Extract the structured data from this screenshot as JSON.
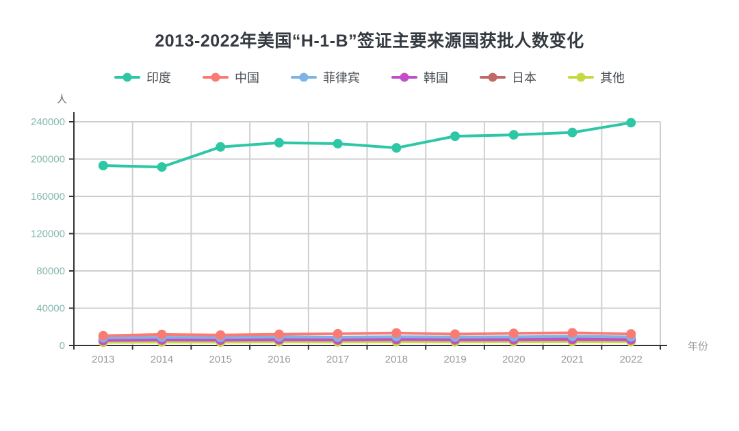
{
  "page": {
    "background": "#ffffff"
  },
  "chart_data": {
    "type": "line",
    "title": "2013-2022年美国“H-1-B”签证主要来源国获批人数变化",
    "xlabel": "年份",
    "ylabel": "人",
    "categories": [
      "2013",
      "2014",
      "2015",
      "2016",
      "2017",
      "2018",
      "2019",
      "2020",
      "2021",
      "2022"
    ],
    "series": [
      {
        "name": "印度",
        "color": "#2EC7A6",
        "values": [
          193000,
          191500,
          213000,
          217500,
          216500,
          212000,
          224500,
          226000,
          228500,
          239000
        ]
      },
      {
        "name": "中国",
        "color": "#FA7A74",
        "values": [
          10500,
          11800,
          11200,
          12000,
          12600,
          13400,
          12200,
          13000,
          13600,
          12400
        ]
      },
      {
        "name": "菲律宾",
        "color": "#7FB2E5",
        "values": [
          8200,
          8800,
          8600,
          9200,
          8900,
          9400,
          9000,
          9300,
          9800,
          9200
        ]
      },
      {
        "name": "韩国",
        "color": "#C14FC9",
        "values": [
          5400,
          5900,
          5700,
          6100,
          5900,
          6300,
          6000,
          6100,
          6400,
          6000
        ]
      },
      {
        "name": "日本",
        "color": "#C06A66",
        "values": [
          6600,
          7000,
          6800,
          7100,
          7300,
          7100,
          6900,
          7100,
          7300,
          7000
        ]
      },
      {
        "name": "其他",
        "color": "#C8D842",
        "values": [
          3400,
          3700,
          3600,
          3900,
          3800,
          4000,
          3900,
          4100,
          4200,
          4000
        ]
      }
    ],
    "yticks": [
      0,
      40000,
      80000,
      120000,
      160000,
      200000,
      240000
    ],
    "ylim": [
      0,
      240000
    ],
    "grid": true,
    "legend_position": "top",
    "style": {
      "grid_color": "#cfcfcf",
      "axis_color": "#333333",
      "y_label_color": "#85B8AE",
      "x_label_color": "#999999",
      "unit_label_color": "#5f6b66",
      "title_color": "#343a40",
      "legend_text_color": "#4a4f55"
    }
  }
}
